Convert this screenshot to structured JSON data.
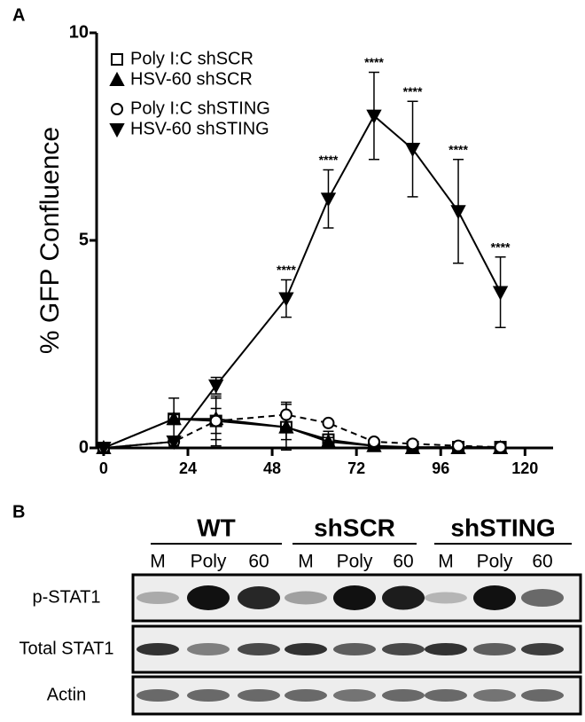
{
  "panel_labels": [
    "A",
    "B"
  ],
  "chart_data": {
    "type": "line",
    "y_label": "% GFP Confluence",
    "x": [
      0,
      20,
      32,
      52,
      64,
      77,
      88,
      101,
      113
    ],
    "xlim": [
      -2,
      128
    ],
    "xticks": [
      0,
      24,
      48,
      72,
      96,
      120
    ],
    "ylim": [
      0,
      10
    ],
    "yticks": [
      0,
      5,
      10
    ],
    "legend": "upper left",
    "series": [
      {
        "name": "Poly I:C shSCR",
        "color": "#000000",
        "marker": "square",
        "line_style": "solid",
        "values": [
          0,
          0.7,
          0.65,
          0.5,
          0.2,
          0.05,
          0.02,
          0.02,
          0.02
        ],
        "errors": [
          0,
          0.5,
          0.6,
          0.55,
          0.2,
          0.05,
          0.03,
          0.03,
          0.03
        ]
      },
      {
        "name": "HSV-60 shSCR",
        "color": "#000000",
        "marker": "triangle",
        "line_style": "solid",
        "values": [
          0,
          0.7,
          0.7,
          0.5,
          0.15,
          0.05,
          0,
          0,
          0
        ],
        "errors": [
          0,
          0.1,
          0.5,
          0.3,
          0.1,
          0.05,
          0.02,
          0.02,
          0.02
        ]
      },
      {
        "name": "Poly I:C shSTING",
        "color": "#000000",
        "marker": "circle",
        "line_style": "dashed",
        "values": [
          0,
          0.15,
          0.65,
          0.8,
          0.6,
          0.15,
          0.1,
          0.05,
          0.02
        ],
        "errors": [
          0,
          0.05,
          0.3,
          0.3,
          0.05,
          0.05,
          0.05,
          0.05,
          0.02
        ]
      },
      {
        "name": "HSV-60 shSTING",
        "color": "#000000",
        "marker": "triangle-down",
        "line_style": "solid",
        "values": [
          0,
          0.15,
          1.5,
          3.6,
          6.0,
          8.0,
          7.2,
          5.7,
          3.75
        ],
        "errors": [
          0,
          0.1,
          0.2,
          0.45,
          0.7,
          1.05,
          1.15,
          1.25,
          0.85
        ],
        "significance": [
          null,
          null,
          null,
          "****",
          "****",
          "****",
          "****",
          "****",
          "****"
        ]
      }
    ]
  },
  "blot": {
    "groups": [
      "WT",
      "shSCR",
      "shSTING"
    ],
    "lanes": [
      "M",
      "Poly",
      "60",
      "M",
      "Poly",
      "60",
      "M",
      "Poly",
      "60"
    ],
    "rows": [
      "p-STAT1",
      "Total STAT1",
      "Actin"
    ]
  }
}
